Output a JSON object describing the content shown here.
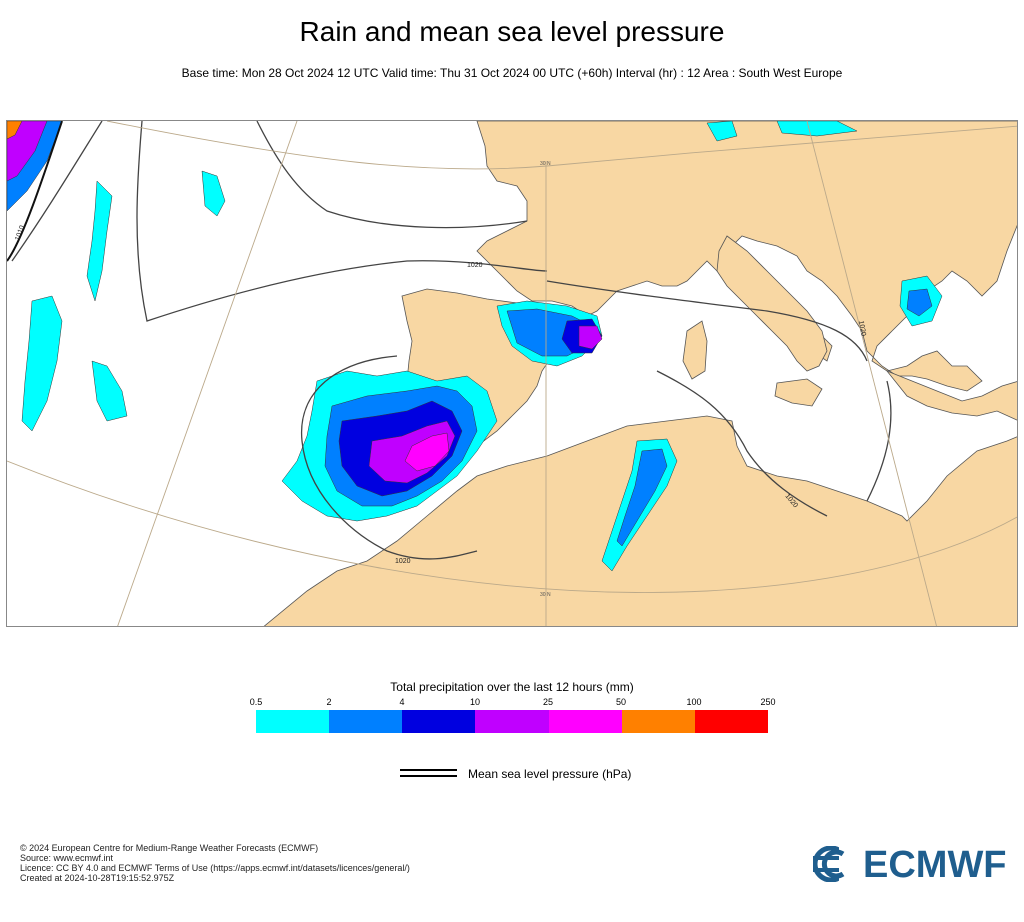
{
  "header": {
    "title": "Rain and mean sea level pressure",
    "subtitle": "Base time: Mon 28 Oct 2024 12 UTC Valid time: Thu 31 Oct 2024 00 UTC (+60h) Interval (hr) : 12 Area : South West Europe"
  },
  "map": {
    "isobar_labels": [
      "1010",
      "1020",
      "1020",
      "1020",
      "1020"
    ],
    "graticule_labels": [
      "30 N",
      "30 N"
    ],
    "colors": {
      "land": "#f8d7a3",
      "sea": "#ffffff",
      "isobar": "#555555"
    }
  },
  "legend": {
    "title": "Total precipitation over the last 12 hours (mm)",
    "ticks": [
      "0.5",
      "2",
      "4",
      "10",
      "25",
      "50",
      "100",
      "250"
    ],
    "colors": [
      "#00ffff",
      "#0080ff",
      "#0000e0",
      "#c000ff",
      "#ff00ff",
      "#ff8000",
      "#ff0000"
    ],
    "mslp_label": "Mean sea level pressure (hPa)"
  },
  "footer": {
    "lines": [
      "© 2024 European Centre for Medium-Range Weather Forecasts (ECMWF)",
      "Source: www.ecmwf.int",
      "Licence: CC BY 4.0 and ECMWF Terms of Use (https://apps.ecmwf.int/datasets/licences/general/)",
      "Created at 2024-10-28T19:15:52.975Z"
    ],
    "logo_text": "ECMWF"
  }
}
